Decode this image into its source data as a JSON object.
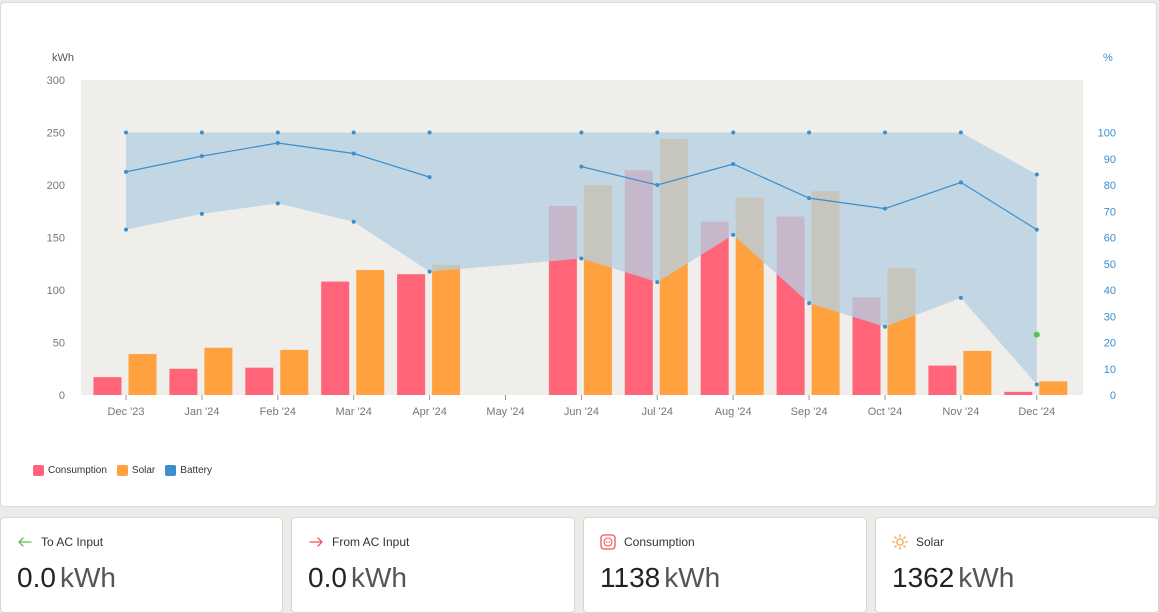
{
  "chart_data": {
    "type": "bar",
    "categories": [
      "Dec '23",
      "Jan '24",
      "Feb '24",
      "Mar '24",
      "Apr '24",
      "May '24",
      "Jun '24",
      "Jul '24",
      "Aug '24",
      "Sep '24",
      "Oct '24",
      "Nov '24",
      "Dec '24"
    ],
    "series": [
      {
        "name": "Consumption",
        "color": "#ff6478",
        "values": [
          17,
          25,
          26,
          108,
          115,
          null,
          180,
          214,
          165,
          170,
          93,
          28,
          3
        ]
      },
      {
        "name": "Solar",
        "color": "#ffa13f",
        "values": [
          39,
          45,
          43,
          119,
          124,
          null,
          200,
          244,
          188,
          194,
          121,
          42,
          13
        ]
      }
    ],
    "battery": {
      "name": "Battery",
      "color": "#3a8fcc",
      "band_color": "#b6cfe1",
      "max": [
        100,
        100,
        100,
        100,
        100,
        null,
        100,
        100,
        100,
        100,
        100,
        100,
        84
      ],
      "avg": [
        85,
        91,
        96,
        92,
        83,
        null,
        87,
        80,
        88,
        75,
        71,
        81,
        63
      ],
      "min": [
        63,
        69,
        73,
        66,
        47,
        null,
        52,
        43,
        61,
        35,
        26,
        37,
        4
      ],
      "extra_point": {
        "category": "Dec '24",
        "value": 23,
        "color": "#5cc24d"
      }
    },
    "ylabel_left": "kWh",
    "ylabel_right": "%",
    "ylim_left": [
      0,
      300
    ],
    "ylim_right": [
      0,
      120
    ],
    "yticks_left": [
      0,
      50,
      100,
      150,
      200,
      250,
      300
    ],
    "yticks_right": [
      0,
      10,
      20,
      30,
      40,
      50,
      60,
      70,
      80,
      90,
      100
    ],
    "plot_bg": "#efeeea",
    "legend_position": "bottom-left"
  },
  "legend": {
    "consumption": "Consumption",
    "solar": "Solar",
    "battery": "Battery"
  },
  "cards": [
    {
      "label": "To AC Input",
      "value": "0.0",
      "unit": "kWh",
      "icon": "arrow-left-icon"
    },
    {
      "label": "From AC Input",
      "value": "0.0",
      "unit": "kWh",
      "icon": "arrow-right-icon"
    },
    {
      "label": "Consumption",
      "value": "1138",
      "unit": "kWh",
      "icon": "outlet-icon"
    },
    {
      "label": "Solar",
      "value": "1362",
      "unit": "kWh",
      "icon": "sun-icon"
    }
  ]
}
